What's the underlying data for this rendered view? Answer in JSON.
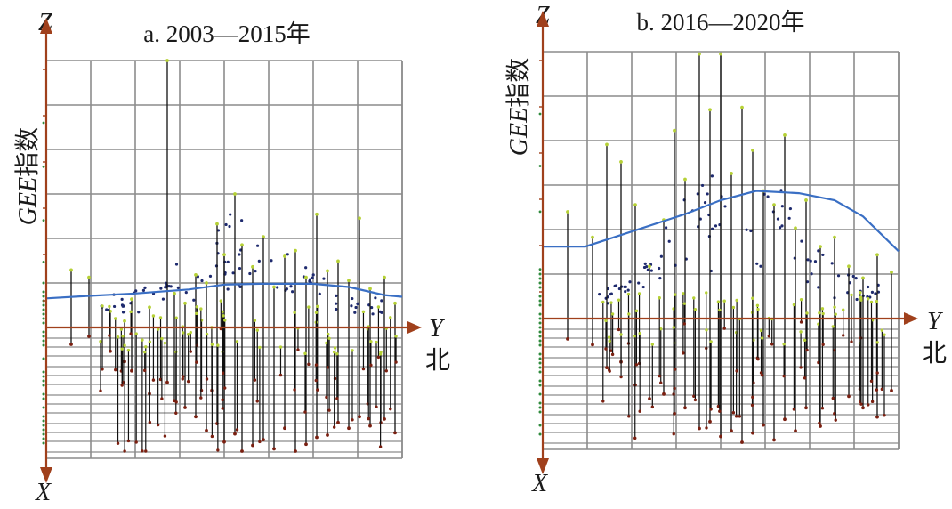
{
  "figure": {
    "panels": [
      {
        "title": "a. 2003—2015年",
        "z_axis_label": "Z",
        "y_axis_label": "Y",
        "x_axis_label": "X",
        "direction_label": "北",
        "vertical_label_italic": "GEE",
        "vertical_label_cjk": "指数"
      },
      {
        "title": "b. 2016—2020年",
        "z_axis_label": "Z",
        "y_axis_label": "Y",
        "x_axis_label": "X",
        "direction_label": "北",
        "vertical_label_italic": "GEE",
        "vertical_label_cjk": "指数"
      }
    ]
  },
  "colors": {
    "axis": "#a0401c",
    "grid": "#8c8c8c",
    "trend": "#3a6fc4",
    "point_top": "#1e2a6e",
    "point_green": "#b6d136",
    "point_red": "#7a1f10",
    "stem": "#111111",
    "side_dots": "#2f8a3c"
  },
  "chart_data": [
    {
      "type": "scatter",
      "title": "a. 2003—2015年",
      "zlabel": "GEE指数",
      "xlabel": "X",
      "ylabel": "Y",
      "trend_line": [
        {
          "y": 0.0,
          "z": 0.36
        },
        {
          "y": 0.12,
          "z": 0.39
        },
        {
          "y": 0.25,
          "z": 0.42
        },
        {
          "y": 0.4,
          "z": 0.47
        },
        {
          "y": 0.5,
          "z": 0.53
        },
        {
          "y": 0.6,
          "z": 0.54
        },
        {
          "y": 0.75,
          "z": 0.54
        },
        {
          "y": 0.85,
          "z": 0.5
        },
        {
          "y": 0.95,
          "z": 0.4
        },
        {
          "y": 1.0,
          "z": 0.38
        }
      ],
      "points": [
        {
          "y": 0.07,
          "x": 0.07,
          "z": 0.71
        },
        {
          "y": 0.12,
          "x": 0.0,
          "z": 0.62
        },
        {
          "y": 0.18,
          "x": 0.13,
          "z": 0.2
        },
        {
          "y": 0.22,
          "x": 0.22,
          "z": 0.08
        },
        {
          "y": 0.24,
          "x": 0.3,
          "z": 0.35
        },
        {
          "y": 0.29,
          "x": 0.5,
          "z": 0.25
        },
        {
          "y": 0.34,
          "x": 0.4,
          "z": 3.3
        },
        {
          "y": 0.36,
          "x": 0.56,
          "z": 0.42
        },
        {
          "y": 0.39,
          "x": 0.62,
          "z": 0.3
        },
        {
          "y": 0.42,
          "x": 0.7,
          "z": 0.65
        },
        {
          "y": 0.45,
          "x": 0.82,
          "z": 0.55
        },
        {
          "y": 0.48,
          "x": 0.76,
          "z": 1.28
        },
        {
          "y": 0.5,
          "x": 0.92,
          "z": 0.9
        },
        {
          "y": 0.53,
          "x": 0.85,
          "z": 1.65
        },
        {
          "y": 0.55,
          "x": 1.0,
          "z": 1.02
        },
        {
          "y": 0.58,
          "x": 0.95,
          "z": 0.75
        },
        {
          "y": 0.61,
          "x": 0.9,
          "z": 1.12
        },
        {
          "y": 0.64,
          "x": 0.98,
          "z": 0.5
        },
        {
          "y": 0.67,
          "x": 0.8,
          "z": 0.88
        },
        {
          "y": 0.7,
          "x": 1.0,
          "z": 0.95
        },
        {
          "y": 0.73,
          "x": 0.94,
          "z": 0.62
        },
        {
          "y": 0.76,
          "x": 0.88,
          "z": 1.4
        },
        {
          "y": 0.79,
          "x": 0.86,
          "z": 0.7
        },
        {
          "y": 0.82,
          "x": 0.75,
          "z": 0.82
        },
        {
          "y": 0.85,
          "x": 0.8,
          "z": 0.58
        },
        {
          "y": 0.88,
          "x": 0.7,
          "z": 1.35
        },
        {
          "y": 0.91,
          "x": 0.78,
          "z": 0.48
        },
        {
          "y": 0.95,
          "x": 0.72,
          "z": 0.62
        },
        {
          "y": 0.98,
          "x": 0.84,
          "z": 0.3
        }
      ]
    },
    {
      "type": "scatter",
      "title": "b. 2016—2020年",
      "zlabel": "GEE指数",
      "xlabel": "X",
      "ylabel": "Y",
      "trend_line": [
        {
          "y": 0.0,
          "z": 0.62
        },
        {
          "y": 0.12,
          "z": 0.62
        },
        {
          "y": 0.25,
          "z": 0.75
        },
        {
          "y": 0.4,
          "z": 0.9
        },
        {
          "y": 0.5,
          "z": 1.02
        },
        {
          "y": 0.6,
          "z": 1.1
        },
        {
          "y": 0.72,
          "z": 1.08
        },
        {
          "y": 0.82,
          "z": 1.02
        },
        {
          "y": 0.9,
          "z": 0.88
        },
        {
          "y": 1.0,
          "z": 0.58
        }
      ],
      "points": [
        {
          "y": 0.07,
          "x": 0.1,
          "z": 0.92
        },
        {
          "y": 0.14,
          "x": 0.15,
          "z": 0.7
        },
        {
          "y": 0.18,
          "x": 0.35,
          "z": 1.5
        },
        {
          "y": 0.22,
          "x": 0.3,
          "z": 1.35
        },
        {
          "y": 0.26,
          "x": 0.5,
          "z": 0.98
        },
        {
          "y": 0.3,
          "x": 0.62,
          "z": 0.45
        },
        {
          "y": 0.34,
          "x": 0.58,
          "z": 0.85
        },
        {
          "y": 0.37,
          "x": 0.75,
          "z": 1.62
        },
        {
          "y": 0.4,
          "x": 0.7,
          "z": 1.2
        },
        {
          "y": 0.44,
          "x": 0.88,
          "z": 2.28
        },
        {
          "y": 0.47,
          "x": 0.82,
          "z": 1.8
        },
        {
          "y": 0.5,
          "x": 0.95,
          "z": 2.28
        },
        {
          "y": 0.53,
          "x": 0.9,
          "z": 1.25
        },
        {
          "y": 0.56,
          "x": 1.0,
          "z": 1.82
        },
        {
          "y": 0.59,
          "x": 0.92,
          "z": 1.45
        },
        {
          "y": 0.62,
          "x": 0.85,
          "z": 1.1
        },
        {
          "y": 0.65,
          "x": 0.98,
          "z": 0.98
        },
        {
          "y": 0.68,
          "x": 0.8,
          "z": 1.58
        },
        {
          "y": 0.71,
          "x": 0.9,
          "z": 0.78
        },
        {
          "y": 0.74,
          "x": 0.7,
          "z": 1.02
        },
        {
          "y": 0.78,
          "x": 0.86,
          "z": 0.62
        },
        {
          "y": 0.82,
          "x": 0.75,
          "z": 0.7
        },
        {
          "y": 0.86,
          "x": 0.6,
          "z": 0.45
        },
        {
          "y": 0.9,
          "x": 0.7,
          "z": 0.35
        },
        {
          "y": 0.94,
          "x": 0.78,
          "z": 0.55
        },
        {
          "y": 0.98,
          "x": 0.55,
          "z": 0.4
        }
      ]
    }
  ]
}
